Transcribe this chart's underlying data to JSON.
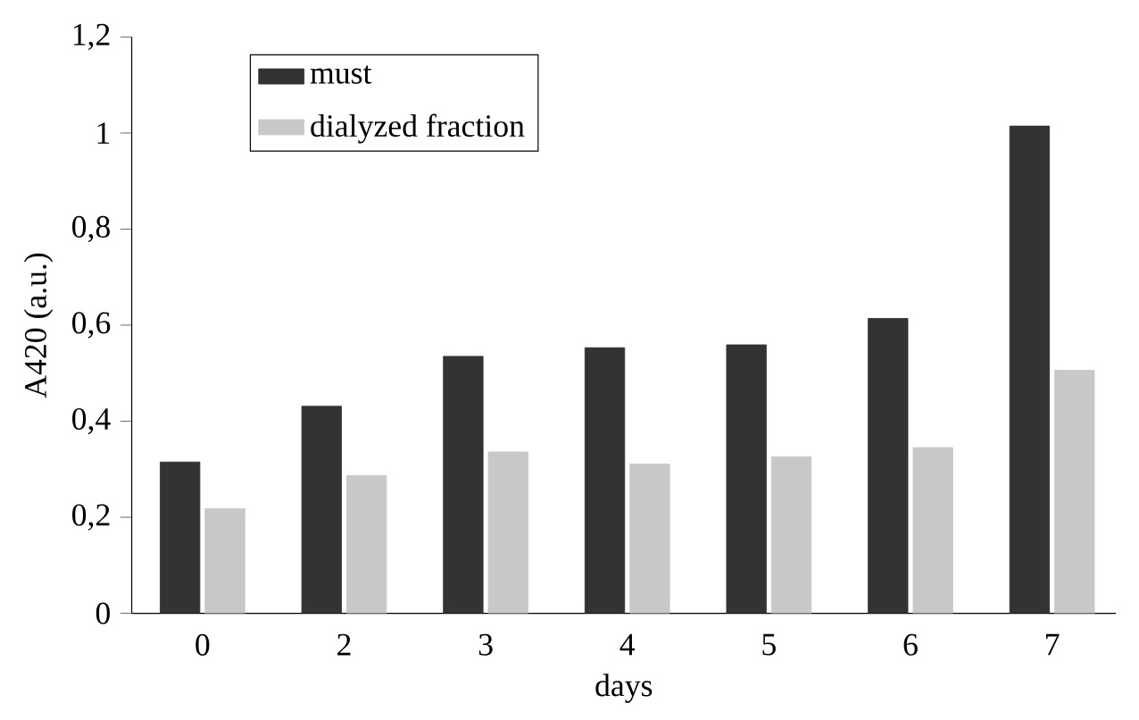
{
  "chart_data": {
    "type": "bar",
    "xlabel": "days",
    "ylabel": "A420 (a.u.)",
    "categories": [
      "0",
      "2",
      "3",
      "4",
      "5",
      "6",
      "7"
    ],
    "series": [
      {
        "name": "must",
        "color": "#333333",
        "values": [
          0.315,
          0.431,
          0.535,
          0.553,
          0.559,
          0.614,
          1.015
        ]
      },
      {
        "name": "dialyzed fraction",
        "color": "#c8c8c8",
        "values": [
          0.218,
          0.287,
          0.336,
          0.311,
          0.326,
          0.345,
          0.506
        ]
      }
    ],
    "ylim": [
      0,
      1.2
    ],
    "yticks": [
      0,
      {
        "value": 0.2,
        "label": "0,2"
      },
      {
        "value": 0.4,
        "label": "0,4"
      },
      {
        "value": 0.6,
        "label": "0,6"
      },
      {
        "value": 0.8,
        "label": "0,8"
      },
      1,
      {
        "value": 1.2,
        "label": "1,2"
      }
    ],
    "legend": "top left",
    "grid": false
  }
}
